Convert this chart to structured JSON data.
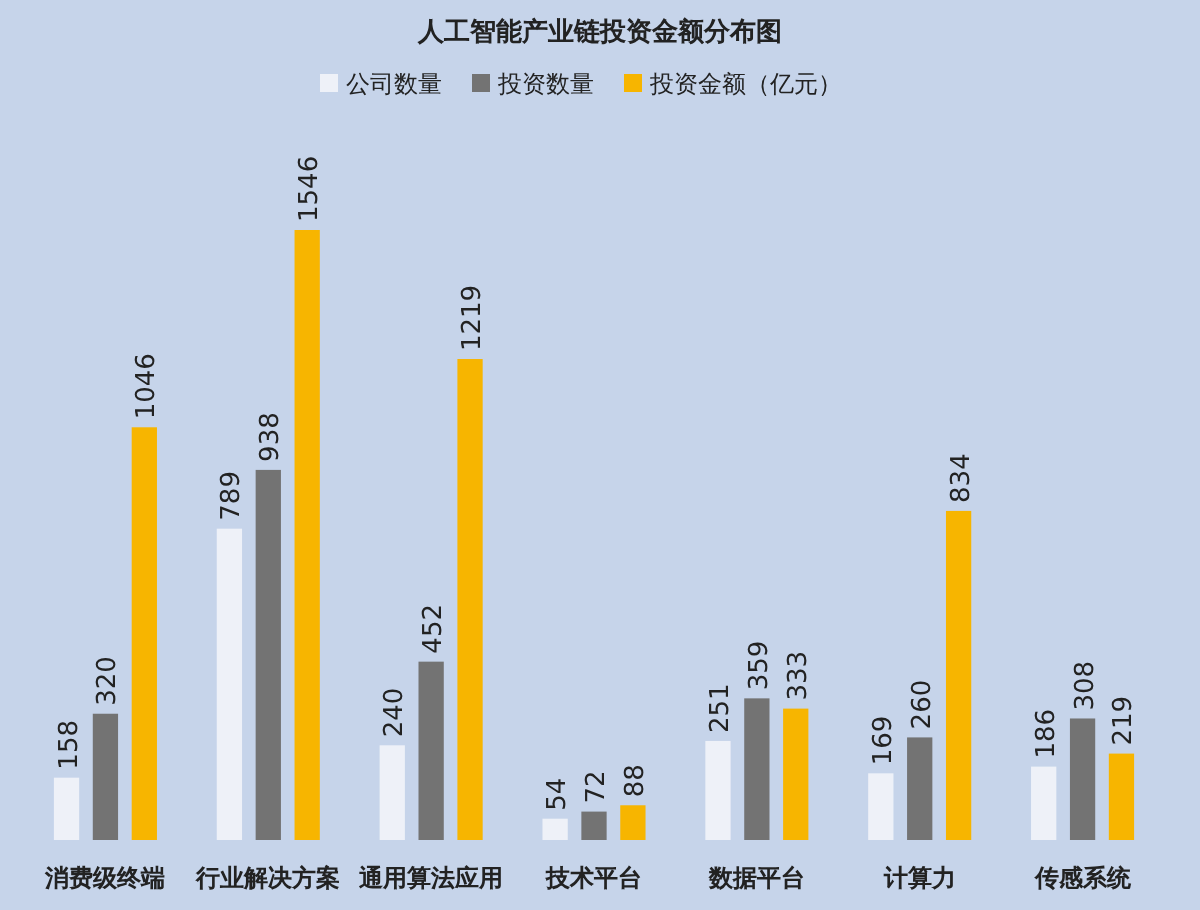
{
  "chart_data": {
    "type": "bar",
    "title": "人工智能产业链投资金额分布图",
    "categories": [
      "消费级终端",
      "行业解决方案",
      "通用算法应用",
      "技术平台",
      "数据平台",
      "计算力",
      "传感系统"
    ],
    "series": [
      {
        "name": "公司数量",
        "color": "#eef1f8",
        "values": [
          158,
          789,
          240,
          54,
          251,
          169,
          186
        ]
      },
      {
        "name": "投资数量",
        "color": "#737373",
        "values": [
          320,
          938,
          452,
          72,
          359,
          260,
          308
        ]
      },
      {
        "name": "投资金额（亿元）",
        "color": "#f7b500",
        "values": [
          1046,
          1546,
          1219,
          88,
          333,
          834,
          219
        ]
      }
    ],
    "data_labels": true,
    "legend": "top"
  }
}
